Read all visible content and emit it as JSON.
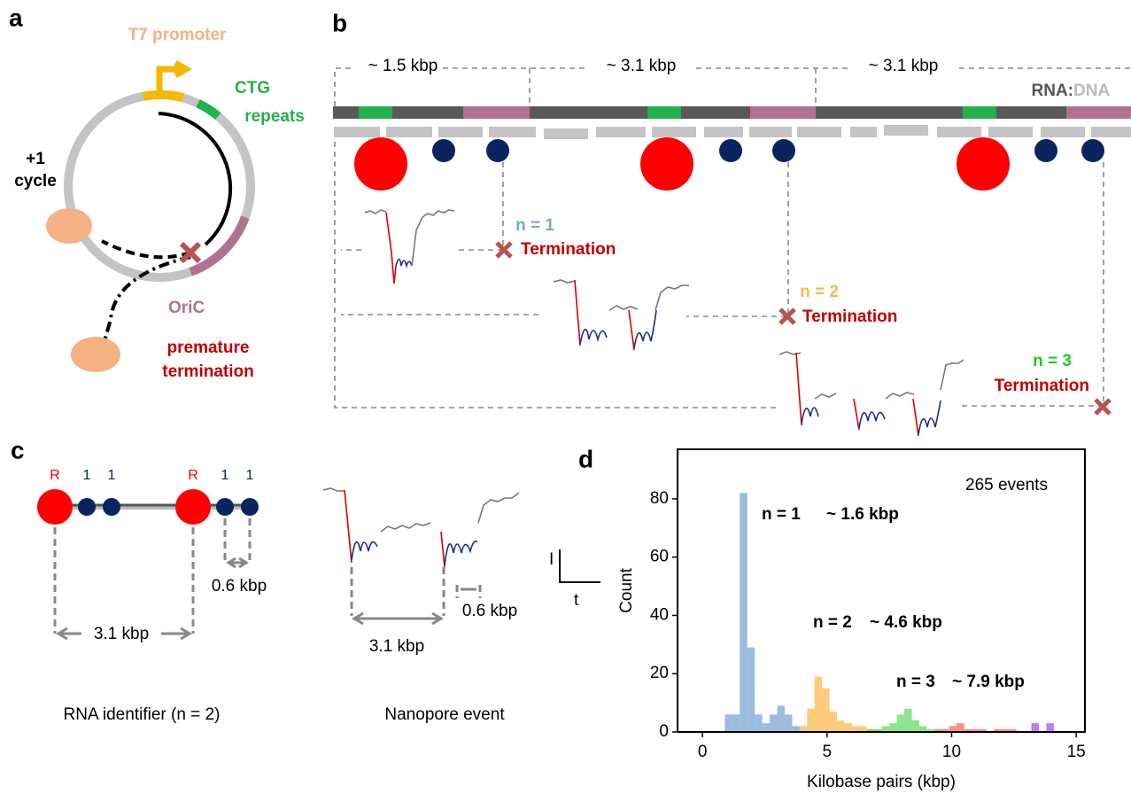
{
  "panel_a": {
    "letter": "a",
    "promoter": "T7 promoter",
    "repeats": [
      "CTG",
      "repeats"
    ],
    "cycle": [
      "+1",
      "cycle"
    ],
    "oric": "OriC",
    "premature": [
      "premature",
      "termination"
    ]
  },
  "panel_b": {
    "letter": "b",
    "spans": [
      "~ 1.5 kbp",
      "~ 3.1 kbp",
      "~ 3.1 kbp"
    ],
    "rna": "RNA:",
    "dna": "DNA",
    "events": [
      {
        "n": "n = 1",
        "label": "Termination"
      },
      {
        "n": "n = 2",
        "label": "Termination"
      },
      {
        "n": "n = 3",
        "label": "Termination"
      }
    ]
  },
  "panel_c": {
    "letter": "c",
    "markers": [
      "R",
      "1",
      "1",
      "R",
      "1",
      "1"
    ],
    "short": "0.6 kbp",
    "long": "3.1 kbp",
    "caption": "RNA identifier (n = 2)",
    "event_short": "0.6 kbp",
    "event_long": "3.1 kbp",
    "event_caption": "Nanopore event",
    "scale_i": "I",
    "scale_t": "t"
  },
  "chart_data": {
    "type": "histogram",
    "letter": "d",
    "xlabel": "Kilobase pairs (kbp)",
    "ylabel": "Count",
    "xlim": [
      -1,
      15.35
    ],
    "ylim": [
      0,
      97
    ],
    "xticks": [
      0,
      5,
      10,
      15
    ],
    "yticks": [
      0,
      20,
      40,
      60,
      80
    ],
    "series": [
      {
        "color": "#7aa6d2",
        "bins": [
          0.9,
          1.2,
          1.5,
          1.8,
          2.1,
          2.4,
          2.7,
          3.0,
          3.3,
          3.6,
          3.9
        ],
        "values": [
          6,
          6,
          82,
          29,
          6,
          3,
          6,
          9,
          6,
          2
        ]
      },
      {
        "color": "#ffb84d",
        "bins": [
          3.9,
          4.2,
          4.5,
          4.8,
          5.1,
          5.4,
          5.7,
          6.0,
          6.3,
          6.6,
          6.9,
          7.2
        ],
        "values": [
          2,
          8,
          19,
          15,
          7,
          4,
          3,
          2,
          2,
          1,
          1
        ]
      },
      {
        "color": "#66dd66",
        "bins": [
          6.6,
          6.9,
          7.2,
          7.5,
          7.8,
          8.1,
          8.4,
          8.7,
          9.0,
          9.3
        ],
        "values": [
          1,
          1,
          2,
          3,
          6,
          8,
          4,
          2,
          1
        ]
      },
      {
        "color": "#ff6666",
        "bins": [
          9.3,
          9.6,
          9.9,
          10.2,
          10.5,
          10.8,
          11.1,
          11.4,
          11.7,
          12.0,
          12.3,
          12.6
        ],
        "values": [
          1,
          1,
          2,
          3,
          1,
          1,
          1,
          0,
          1,
          1,
          1
        ]
      },
      {
        "color": "#a64dff",
        "bins": [
          13.2,
          13.5,
          13.8,
          14.1
        ],
        "values": [
          3,
          0,
          3
        ]
      }
    ],
    "annotations": [
      {
        "text": "265 events",
        "color": "#000000"
      },
      {
        "text": "n = 1",
        "color": "#7aa6d2"
      },
      {
        "text": "~ 1.6 kbp",
        "color": "#7aa6d2"
      },
      {
        "text": "n = 2",
        "color": "#ffb84d"
      },
      {
        "text": "~ 4.6 kbp",
        "color": "#ffb84d"
      },
      {
        "text": "n = 3",
        "color": "#22cc22"
      },
      {
        "text": "~ 7.9 kbp",
        "color": "#22cc22"
      }
    ]
  }
}
